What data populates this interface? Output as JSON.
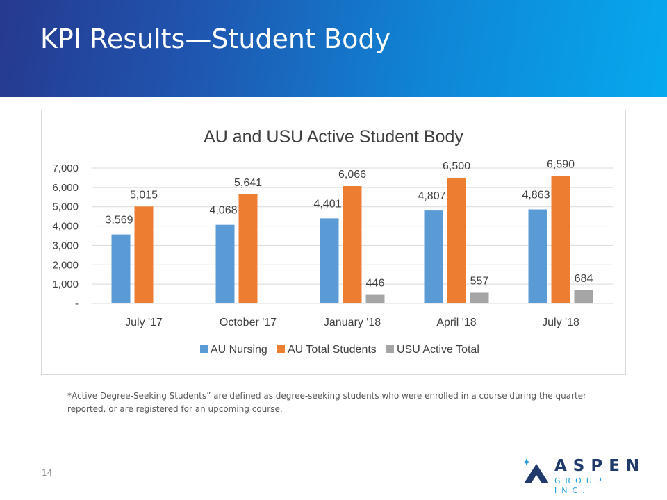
{
  "slide": {
    "title": "KPI Results—Student Body",
    "footnote": "*Active Degree-Seeking Students” are defined as degree-seeking students who were enrolled in a course during the quarter reported, or are registered for an upcoming course.",
    "page_number": "14"
  },
  "logo": {
    "name": "ASPEN",
    "sub": "GROUP INC."
  },
  "colors": {
    "au_nursing": "#5b9bd5",
    "au_total": "#ed7d31",
    "usu_total": "#a5a5a5",
    "logo_navy": "#1f3a6b",
    "logo_blue": "#1f9fe0"
  },
  "chart_data": {
    "type": "bar",
    "title": "AU and USU Active Student Body",
    "categories": [
      "July '17",
      "October '17",
      "January '18",
      "April '18",
      "July '18"
    ],
    "series": [
      {
        "name": "AU Nursing",
        "values": [
          3569,
          4068,
          4401,
          4807,
          4863
        ],
        "labels": [
          "3,569",
          "4,068",
          "4,401",
          "4,807",
          "4,863"
        ]
      },
      {
        "name": "AU Total Students",
        "values": [
          5015,
          5641,
          6066,
          6500,
          6590
        ],
        "labels": [
          "5,015",
          "5,641",
          "6,066",
          "6,500",
          "6,590"
        ]
      },
      {
        "name": "USU Active Total",
        "values": [
          null,
          null,
          446,
          557,
          684
        ],
        "labels": [
          null,
          null,
          "446",
          "557",
          "684"
        ]
      }
    ],
    "yticks": [
      0,
      1000,
      2000,
      3000,
      4000,
      5000,
      6000,
      7000
    ],
    "ytick_labels": [
      "-",
      "1,000",
      "2,000",
      "3,000",
      "4,000",
      "5,000",
      "6,000",
      "7,000"
    ],
    "ylim": [
      0,
      7000
    ],
    "grid": true,
    "legend": "bottom"
  }
}
